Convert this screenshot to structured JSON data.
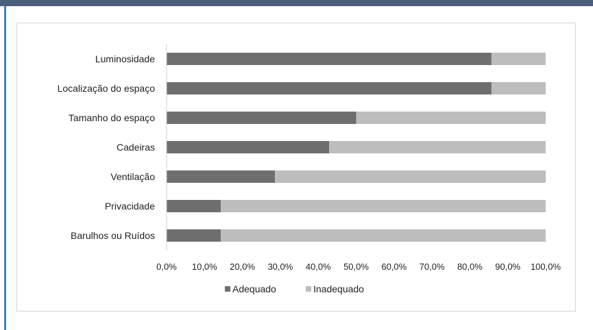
{
  "chart_data": {
    "type": "bar",
    "orientation": "horizontal",
    "stacked": true,
    "categories": [
      "Luminosidade",
      "Localização do espaço",
      "Tamanho do espaço",
      "Cadeiras",
      "Ventilação",
      "Privacidade",
      "Barulhos ou Ruídos"
    ],
    "series": [
      {
        "name": "Adequado",
        "values": [
          85.7,
          85.7,
          50.0,
          42.9,
          28.6,
          14.3,
          14.3
        ],
        "color": "#6e6e6e"
      },
      {
        "name": "Inadequado",
        "values": [
          14.3,
          14.3,
          50.0,
          57.1,
          71.4,
          85.7,
          85.7
        ],
        "color": "#bdbdbd"
      }
    ],
    "xlim": [
      0,
      100
    ],
    "x_ticks": [
      "0,0%",
      "10,0%",
      "20,0%",
      "30,0%",
      "40,0%",
      "50,0%",
      "60,0%",
      "70,0%",
      "80,0%",
      "90,0%",
      "100,0%"
    ],
    "grid": false,
    "legend_position": "bottom"
  }
}
